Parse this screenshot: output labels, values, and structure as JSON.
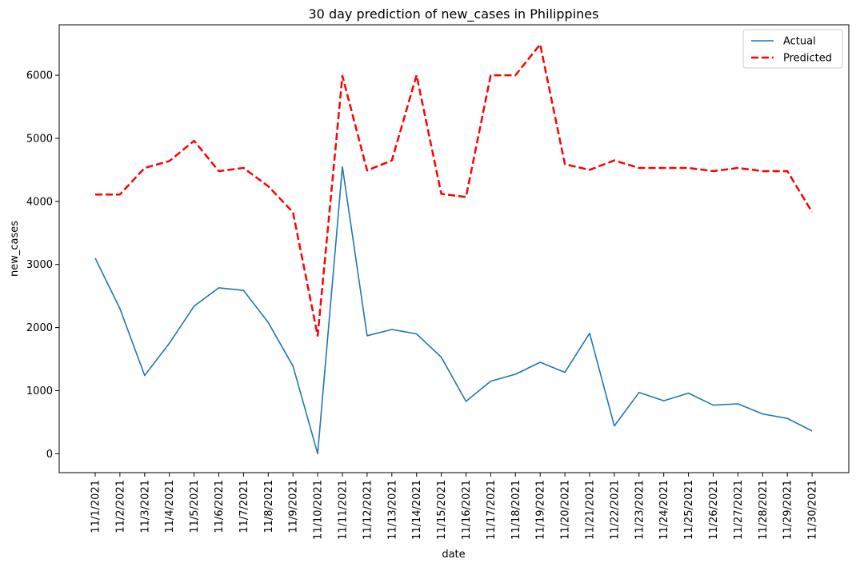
{
  "chart_data": {
    "type": "line",
    "title": "30 day prediction of new_cases in Philippines",
    "xlabel": "date",
    "ylabel": "new_cases",
    "ylim": [
      -300,
      6800
    ],
    "yticks": [
      0,
      1000,
      2000,
      3000,
      4000,
      5000,
      6000
    ],
    "grid": false,
    "legend_position": "top-right",
    "categories": [
      "11/1/2021",
      "11/2/2021",
      "11/3/2021",
      "11/4/2021",
      "11/5/2021",
      "11/6/2021",
      "11/7/2021",
      "11/8/2021",
      "11/9/2021",
      "11/10/2021",
      "11/11/2021",
      "11/12/2021",
      "11/13/2021",
      "11/14/2021",
      "11/15/2021",
      "11/16/2021",
      "11/17/2021",
      "11/18/2021",
      "11/19/2021",
      "11/20/2021",
      "11/21/2021",
      "11/22/2021",
      "11/23/2021",
      "11/24/2021",
      "11/25/2021",
      "11/26/2021",
      "11/27/2021",
      "11/28/2021",
      "11/29/2021",
      "11/30/2021"
    ],
    "series": [
      {
        "name": "Actual",
        "color": "#1f77b4",
        "style": "solid",
        "values": [
          3100,
          2300,
          1240,
          1750,
          2340,
          2630,
          2590,
          2080,
          1390,
          0,
          4550,
          1870,
          1970,
          1900,
          1530,
          830,
          1150,
          1260,
          1450,
          1290,
          1910,
          440,
          970,
          840,
          960,
          770,
          790,
          630,
          560,
          360
        ]
      },
      {
        "name": "Predicted",
        "color": "#ff0000",
        "style": "dashed",
        "values": [
          4110,
          4110,
          4530,
          4640,
          4960,
          4480,
          4530,
          4240,
          3830,
          1870,
          5990,
          4490,
          4650,
          6000,
          4120,
          4070,
          6000,
          6000,
          6490,
          4590,
          4500,
          4650,
          4530,
          4530,
          4530,
          4480,
          4530,
          4480,
          4480,
          3830
        ]
      }
    ]
  }
}
